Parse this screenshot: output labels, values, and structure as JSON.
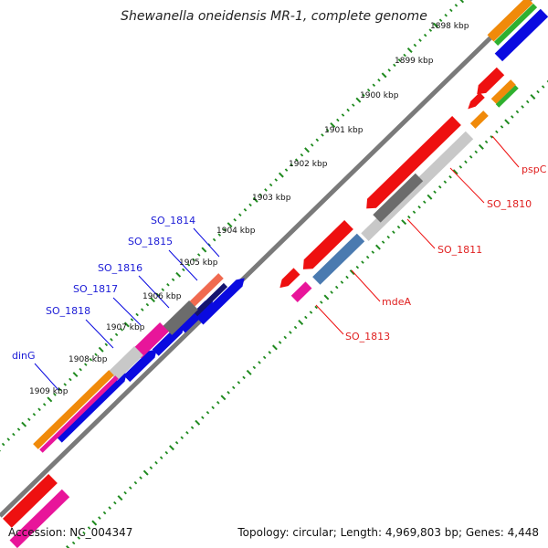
{
  "title": "Shewanella oneidensis MR-1, complete genome",
  "kbp_ticks": [
    "1898 kbp",
    "1899 kbp",
    "1900 kbp",
    "1901 kbp",
    "1902 kbp",
    "1903 kbp",
    "1904 kbp",
    "1905 kbp",
    "1906 kbp",
    "1907 kbp",
    "1908 kbp",
    "1909 kbp"
  ],
  "left_labels": [
    "SO_1814",
    "SO_1815",
    "SO_1816",
    "SO_1817",
    "SO_1818",
    "dinG"
  ],
  "right_labels": [
    "pspC",
    "SO_1810",
    "SO_1811",
    "mdeA",
    "SO_1813"
  ],
  "footer": {
    "accession": "Accession: NC_004347",
    "topology": "Topology: circular; Length: 4,969,803 bp; Genes: 4,448"
  },
  "colors": {
    "backbone": "#7a7a7a",
    "tick": "#1f8a1f",
    "blue": "#0a0ae0",
    "red": "#ee1010",
    "magenta": "#e8159a",
    "orange": "#f08a0a",
    "green": "#2fb02f",
    "lightgray": "#c8c8c8",
    "darkgray": "#6c6c6c",
    "navy": "#14146e",
    "steelblue": "#4a7ab0",
    "salmon": "#f06a50"
  }
}
